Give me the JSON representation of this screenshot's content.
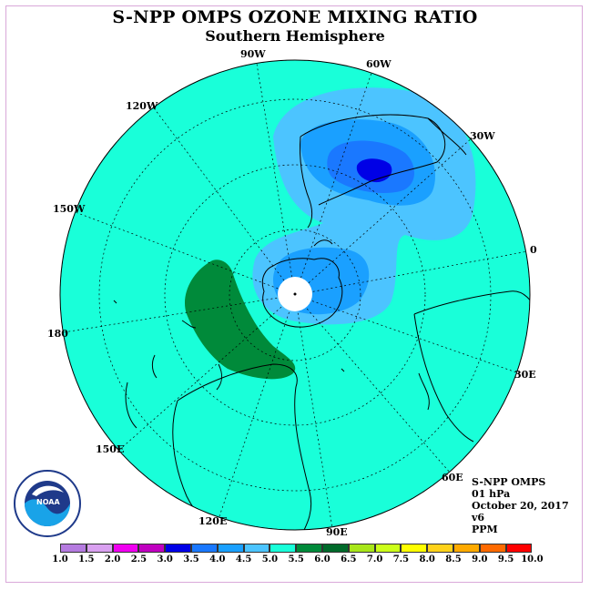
{
  "title": "S-NPP OMPS OZONE MIXING RATIO",
  "subtitle": "Southern Hemisphere",
  "longitude_labels": {
    "w90": "90W",
    "w60": "60W",
    "w30": "30W",
    "zero": "0",
    "e30": "30E",
    "e60": "60E",
    "e90": "90E",
    "e120": "120E",
    "e150": "150E",
    "lon180": "180",
    "w150": "150W",
    "w120": "120W"
  },
  "info": {
    "instrument": "S-NPP OMPS",
    "level": "01 hPa",
    "date": "October 20, 2017",
    "version": "v6",
    "units": "PPM"
  },
  "logo_text": "NOAA",
  "colorbar": {
    "labels": [
      "1.0",
      "1.5",
      "2.0",
      "2.5",
      "3.0",
      "3.5",
      "4.0",
      "4.5",
      "5.0",
      "5.5",
      "6.0",
      "6.5",
      "7.0",
      "7.5",
      "8.0",
      "8.5",
      "9.0",
      "9.5",
      "10.0"
    ],
    "colors": [
      "#b57be0",
      "#d9a0f0",
      "#f000f0",
      "#c000c0",
      "#0000e6",
      "#1a78ff",
      "#1aa0ff",
      "#4cc4ff",
      "#19ffd9",
      "#008a3a",
      "#006a2a",
      "#a8e61a",
      "#ccff1a",
      "#ffff00",
      "#ffd21a",
      "#ffaa00",
      "#ff6a00",
      "#ff0000",
      "#8b5a3c"
    ]
  },
  "colors": {
    "background": "#19ffd9",
    "contour_light": "#4cc4ff",
    "contour_mid": "#1aa0ff",
    "contour_dark": "#1a78ff",
    "contour_max": "#0000e6",
    "green": "#008a3a"
  }
}
